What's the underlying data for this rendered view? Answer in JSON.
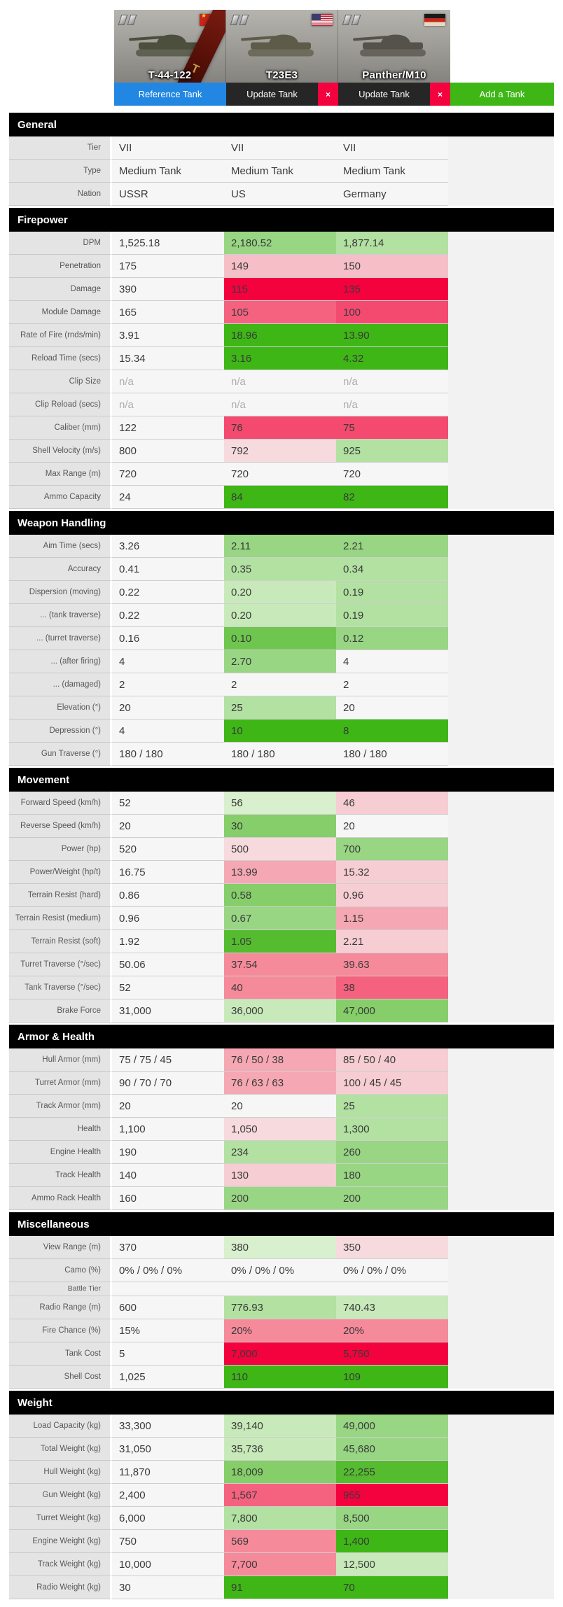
{
  "header": {
    "tanks": [
      {
        "name": "T-44-122",
        "flag": "ussr",
        "button_label": "Reference Tank",
        "premium_mark": "T"
      },
      {
        "name": "T23E3",
        "flag": "us",
        "button_label": "Update Tank"
      },
      {
        "name": "Panther/M10",
        "flag": "de",
        "button_label": "Update Tank"
      }
    ],
    "close_label": "×",
    "add_label": "Add a Tank"
  },
  "colors": {
    "reference_button": "#2287e2",
    "update_button": "#262626",
    "close_button": "#f4023e",
    "add_button": "#3eb616",
    "section_bar": "#000000"
  },
  "palette": {
    "g1": "#3eb616",
    "g2": "#55bc30",
    "g3": "#6fc64e",
    "g4": "#85ce69",
    "g5": "#98d684",
    "g6": "#b2e1a2",
    "g7": "#c8eaba",
    "g8": "#d8f0cd",
    "r1": "#f4023e",
    "r2": "#f54a6f",
    "r3": "#f5627f",
    "r4": "#f58a9a",
    "r5": "#f5a8b3",
    "r6": "#f6bfc7",
    "r7": "#f6cdd3",
    "r8": "#f6dade"
  },
  "sections": [
    {
      "title": "General",
      "rows": [
        {
          "label": "Tier",
          "cells": [
            [
              "VII",
              ""
            ],
            [
              "VII",
              ""
            ],
            [
              "VII",
              ""
            ]
          ]
        },
        {
          "label": "Type",
          "cells": [
            [
              "Medium Tank",
              ""
            ],
            [
              "Medium Tank",
              ""
            ],
            [
              "Medium Tank",
              ""
            ]
          ]
        },
        {
          "label": "Nation",
          "cells": [
            [
              "USSR",
              ""
            ],
            [
              "US",
              ""
            ],
            [
              "Germany",
              ""
            ]
          ]
        }
      ]
    },
    {
      "title": "Firepower",
      "rows": [
        {
          "label": "DPM",
          "cells": [
            [
              "1,525.18",
              ""
            ],
            [
              "2,180.52",
              "g5"
            ],
            [
              "1,877.14",
              "g6"
            ]
          ]
        },
        {
          "label": "Penetration",
          "cells": [
            [
              "175",
              ""
            ],
            [
              "149",
              "r6"
            ],
            [
              "150",
              "r6"
            ]
          ]
        },
        {
          "label": "Damage",
          "cells": [
            [
              "390",
              ""
            ],
            [
              "115",
              "r1"
            ],
            [
              "135",
              "r1"
            ]
          ]
        },
        {
          "label": "Module Damage",
          "cells": [
            [
              "165",
              ""
            ],
            [
              "105",
              "r3"
            ],
            [
              "100",
              "r2"
            ]
          ]
        },
        {
          "label": "Rate of Fire (rnds/min)",
          "cells": [
            [
              "3.91",
              ""
            ],
            [
              "18.96",
              "g1"
            ],
            [
              "13.90",
              "g1"
            ]
          ]
        },
        {
          "label": "Reload Time (secs)",
          "cells": [
            [
              "15.34",
              ""
            ],
            [
              "3.16",
              "g1"
            ],
            [
              "4.32",
              "g1"
            ]
          ]
        },
        {
          "label": "Clip Size",
          "cells": [
            [
              "n/a",
              "na"
            ],
            [
              "n/a",
              "na"
            ],
            [
              "n/a",
              "na"
            ]
          ]
        },
        {
          "label": "Clip Reload (secs)",
          "cells": [
            [
              "n/a",
              "na"
            ],
            [
              "n/a",
              "na"
            ],
            [
              "n/a",
              "na"
            ]
          ]
        },
        {
          "label": "Caliber (mm)",
          "cells": [
            [
              "122",
              ""
            ],
            [
              "76",
              "r2"
            ],
            [
              "75",
              "r2"
            ]
          ]
        },
        {
          "label": "Shell Velocity (m/s)",
          "cells": [
            [
              "800",
              ""
            ],
            [
              "792",
              "r8"
            ],
            [
              "925",
              "g6"
            ]
          ]
        },
        {
          "label": "Max Range (m)",
          "cells": [
            [
              "720",
              ""
            ],
            [
              "720",
              ""
            ],
            [
              "720",
              ""
            ]
          ]
        },
        {
          "label": "Ammo Capacity",
          "cells": [
            [
              "24",
              ""
            ],
            [
              "84",
              "g1"
            ],
            [
              "82",
              "g1"
            ]
          ]
        }
      ]
    },
    {
      "title": "Weapon Handling",
      "rows": [
        {
          "label": "Aim Time (secs)",
          "cells": [
            [
              "3.26",
              ""
            ],
            [
              "2.11",
              "g5"
            ],
            [
              "2.21",
              "g5"
            ]
          ]
        },
        {
          "label": "Accuracy",
          "cells": [
            [
              "0.41",
              ""
            ],
            [
              "0.35",
              "g6"
            ],
            [
              "0.34",
              "g6"
            ]
          ]
        },
        {
          "label": "Dispersion (moving)",
          "cells": [
            [
              "0.22",
              ""
            ],
            [
              "0.20",
              "g7"
            ],
            [
              "0.19",
              "g6"
            ]
          ]
        },
        {
          "label": "... (tank traverse)",
          "cells": [
            [
              "0.22",
              ""
            ],
            [
              "0.20",
              "g7"
            ],
            [
              "0.19",
              "g6"
            ]
          ]
        },
        {
          "label": "... (turret traverse)",
          "cells": [
            [
              "0.16",
              ""
            ],
            [
              "0.10",
              "g3"
            ],
            [
              "0.12",
              "g5"
            ]
          ]
        },
        {
          "label": "... (after firing)",
          "cells": [
            [
              "4",
              ""
            ],
            [
              "2.70",
              "g5"
            ],
            [
              "4",
              ""
            ]
          ]
        },
        {
          "label": "... (damaged)",
          "cells": [
            [
              "2",
              ""
            ],
            [
              "2",
              ""
            ],
            [
              "2",
              ""
            ]
          ]
        },
        {
          "label": "Elevation (°)",
          "cells": [
            [
              "20",
              ""
            ],
            [
              "25",
              "g6"
            ],
            [
              "20",
              ""
            ]
          ]
        },
        {
          "label": "Depression (°)",
          "cells": [
            [
              "4",
              ""
            ],
            [
              "10",
              "g1"
            ],
            [
              "8",
              "g1"
            ]
          ]
        },
        {
          "label": "Gun Traverse (°)",
          "cells": [
            [
              "180 / 180",
              ""
            ],
            [
              "180 / 180",
              ""
            ],
            [
              "180 / 180",
              ""
            ]
          ]
        }
      ]
    },
    {
      "title": "Movement",
      "rows": [
        {
          "label": "Forward Speed (km/h)",
          "cells": [
            [
              "52",
              ""
            ],
            [
              "56",
              "g8"
            ],
            [
              "46",
              "r7"
            ]
          ]
        },
        {
          "label": "Reverse Speed (km/h)",
          "cells": [
            [
              "20",
              ""
            ],
            [
              "30",
              "g4"
            ],
            [
              "20",
              ""
            ]
          ]
        },
        {
          "label": "Power (hp)",
          "cells": [
            [
              "520",
              ""
            ],
            [
              "500",
              "r8"
            ],
            [
              "700",
              "g5"
            ]
          ]
        },
        {
          "label": "Power/Weight (hp/t)",
          "cells": [
            [
              "16.75",
              ""
            ],
            [
              "13.99",
              "r5"
            ],
            [
              "15.32",
              "r7"
            ]
          ]
        },
        {
          "label": "Terrain Resist (hard)",
          "cells": [
            [
              "0.86",
              ""
            ],
            [
              "0.58",
              "g4"
            ],
            [
              "0.96",
              "r7"
            ]
          ]
        },
        {
          "label": "Terrain Resist (medium)",
          "cells": [
            [
              "0.96",
              ""
            ],
            [
              "0.67",
              "g5"
            ],
            [
              "1.15",
              "r5"
            ]
          ]
        },
        {
          "label": "Terrain Resist (soft)",
          "cells": [
            [
              "1.92",
              ""
            ],
            [
              "1.05",
              "g2"
            ],
            [
              "2.21",
              "r7"
            ]
          ]
        },
        {
          "label": "Turret Traverse (°/sec)",
          "cells": [
            [
              "50.06",
              ""
            ],
            [
              "37.54",
              "r4"
            ],
            [
              "39.63",
              "r4"
            ]
          ]
        },
        {
          "label": "Tank Traverse (°/sec)",
          "cells": [
            [
              "52",
              ""
            ],
            [
              "40",
              "r4"
            ],
            [
              "38",
              "r3"
            ]
          ]
        },
        {
          "label": "Brake Force",
          "cells": [
            [
              "31,000",
              ""
            ],
            [
              "36,000",
              "g7"
            ],
            [
              "47,000",
              "g4"
            ]
          ]
        }
      ]
    },
    {
      "title": "Armor & Health",
      "rows": [
        {
          "label": "Hull Armor (mm)",
          "cells": [
            [
              "75 / 75 / 45",
              ""
            ],
            [
              "76 / 50 / 38",
              "r5"
            ],
            [
              "85 / 50 / 40",
              "r7"
            ]
          ]
        },
        {
          "label": "Turret Armor (mm)",
          "cells": [
            [
              "90 / 70 / 70",
              ""
            ],
            [
              "76 / 63 / 63",
              "r5"
            ],
            [
              "100 / 45 / 45",
              "r7"
            ]
          ]
        },
        {
          "label": "Track Armor (mm)",
          "cells": [
            [
              "20",
              ""
            ],
            [
              "20",
              ""
            ],
            [
              "25",
              "g6"
            ]
          ]
        },
        {
          "label": "Health",
          "cells": [
            [
              "1,100",
              ""
            ],
            [
              "1,050",
              "r8"
            ],
            [
              "1,300",
              "g6"
            ]
          ]
        },
        {
          "label": "Engine Health",
          "cells": [
            [
              "190",
              ""
            ],
            [
              "234",
              "g6"
            ],
            [
              "260",
              "g5"
            ]
          ]
        },
        {
          "label": "Track Health",
          "cells": [
            [
              "140",
              ""
            ],
            [
              "130",
              "r7"
            ],
            [
              "180",
              "g5"
            ]
          ]
        },
        {
          "label": "Ammo Rack Health",
          "cells": [
            [
              "160",
              ""
            ],
            [
              "200",
              "g5"
            ],
            [
              "200",
              "g5"
            ]
          ]
        }
      ]
    },
    {
      "title": "Miscellaneous",
      "rows": [
        {
          "label": "View Range (m)",
          "cells": [
            [
              "370",
              ""
            ],
            [
              "380",
              "g8"
            ],
            [
              "350",
              "r8"
            ]
          ]
        },
        {
          "label": "Camo (%)",
          "cells": [
            [
              "0% / 0% / 0%",
              ""
            ],
            [
              "0% / 0% / 0%",
              ""
            ],
            [
              "0% / 0% / 0%",
              ""
            ]
          ]
        },
        {
          "label": "Battle Tier",
          "short": true,
          "cells": [
            [
              "",
              ""
            ],
            [
              "",
              ""
            ],
            [
              "",
              ""
            ]
          ]
        },
        {
          "label": "Radio Range (m)",
          "cells": [
            [
              "600",
              ""
            ],
            [
              "776.93",
              "g6"
            ],
            [
              "740.43",
              "g7"
            ]
          ]
        },
        {
          "label": "Fire Chance (%)",
          "cells": [
            [
              "15%",
              ""
            ],
            [
              "20%",
              "r4"
            ],
            [
              "20%",
              "r4"
            ]
          ]
        },
        {
          "label": "Tank Cost",
          "cells": [
            [
              "5",
              ""
            ],
            [
              "7,000",
              "r1"
            ],
            [
              "5,750",
              "r1"
            ]
          ]
        },
        {
          "label": "Shell Cost",
          "cells": [
            [
              "1,025",
              ""
            ],
            [
              "110",
              "g1"
            ],
            [
              "109",
              "g1"
            ]
          ]
        }
      ]
    },
    {
      "title": "Weight",
      "rows": [
        {
          "label": "Load Capacity (kg)",
          "cells": [
            [
              "33,300",
              ""
            ],
            [
              "39,140",
              "g7"
            ],
            [
              "49,000",
              "g5"
            ]
          ]
        },
        {
          "label": "Total Weight (kg)",
          "cells": [
            [
              "31,050",
              ""
            ],
            [
              "35,736",
              "g7"
            ],
            [
              "45,680",
              "g5"
            ]
          ]
        },
        {
          "label": "Hull Weight (kg)",
          "cells": [
            [
              "11,870",
              ""
            ],
            [
              "18,009",
              "g4"
            ],
            [
              "22,255",
              "g2"
            ]
          ]
        },
        {
          "label": "Gun Weight (kg)",
          "cells": [
            [
              "2,400",
              ""
            ],
            [
              "1,567",
              "r3"
            ],
            [
              "955",
              "r1"
            ]
          ]
        },
        {
          "label": "Turret Weight (kg)",
          "cells": [
            [
              "6,000",
              ""
            ],
            [
              "7,800",
              "g6"
            ],
            [
              "8,500",
              "g5"
            ]
          ]
        },
        {
          "label": "Engine Weight (kg)",
          "cells": [
            [
              "750",
              ""
            ],
            [
              "569",
              "r4"
            ],
            [
              "1,400",
              "g1"
            ]
          ]
        },
        {
          "label": "Track Weight (kg)",
          "cells": [
            [
              "10,000",
              ""
            ],
            [
              "7,700",
              "r4"
            ],
            [
              "12,500",
              "g7"
            ]
          ]
        },
        {
          "label": "Radio Weight (kg)",
          "cells": [
            [
              "30",
              ""
            ],
            [
              "91",
              "g1"
            ],
            [
              "70",
              "g1"
            ]
          ]
        }
      ]
    }
  ]
}
